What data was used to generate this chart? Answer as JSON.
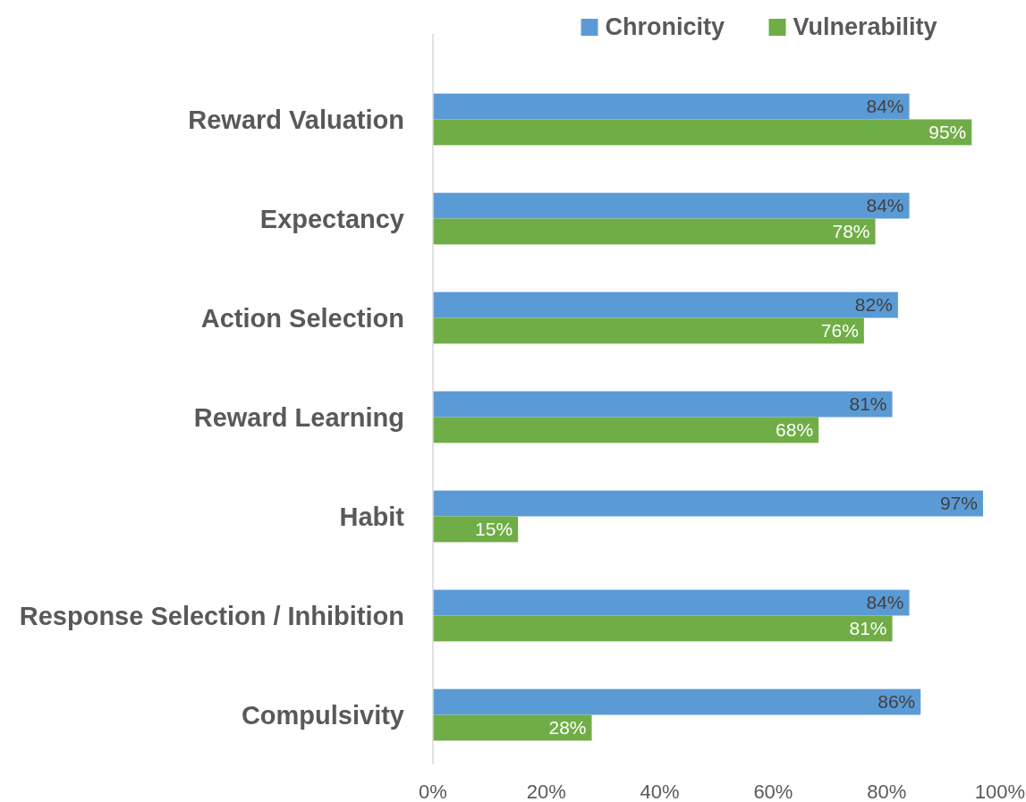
{
  "chart_data": {
    "type": "bar",
    "orientation": "horizontal",
    "categories": [
      "Reward Valuation",
      "Expectancy",
      "Action Selection",
      "Reward Learning",
      "Habit",
      "Response Selection / Inhibition",
      "Compulsivity"
    ],
    "series": [
      {
        "name": "Chronicity",
        "color": "#5b9bd5",
        "values": [
          84,
          84,
          82,
          81,
          97,
          84,
          86
        ],
        "value_labels": [
          "84%",
          "84%",
          "82%",
          "81%",
          "97%",
          "84%",
          "86%"
        ]
      },
      {
        "name": "Vulnerability",
        "color": "#70ad47",
        "values": [
          95,
          78,
          76,
          68,
          15,
          81,
          28
        ],
        "value_labels": [
          "95%",
          "78%",
          "76%",
          "68%",
          "15%",
          "81%",
          "28%"
        ]
      }
    ],
    "xlim": [
      0,
      100
    ],
    "xticks": [
      {
        "value": 0,
        "label": "0%"
      },
      {
        "value": 20,
        "label": "20%"
      },
      {
        "value": 40,
        "label": "40%"
      },
      {
        "value": 60,
        "label": "60%"
      },
      {
        "value": 80,
        "label": "80%"
      },
      {
        "value": 100,
        "label": "100%"
      }
    ],
    "grid": false,
    "legend": "top"
  }
}
